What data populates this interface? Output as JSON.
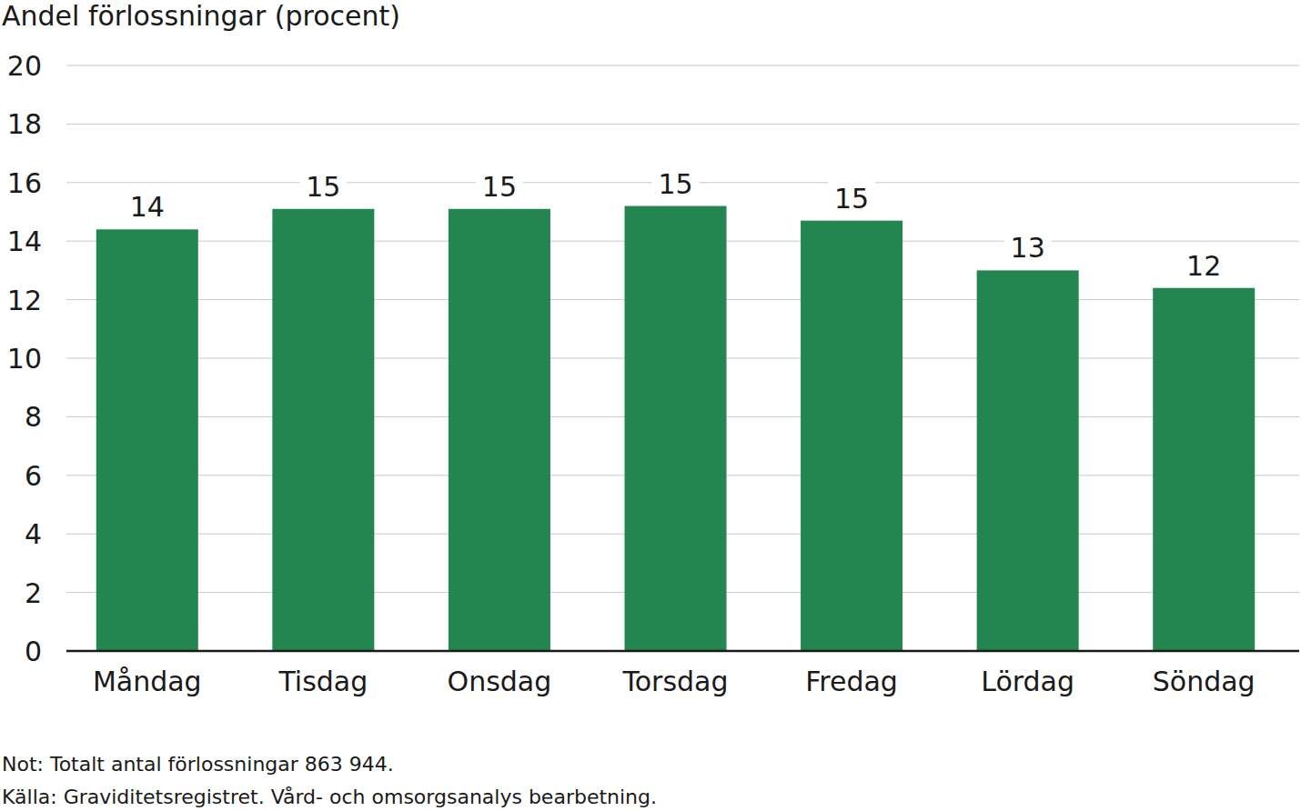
{
  "chart_data": {
    "type": "bar",
    "y_label": "Andel förlossningar (procent)",
    "categories": [
      "Måndag",
      "Tisdag",
      "Onsdag",
      "Torsdag",
      "Fredag",
      "Lördag",
      "Söndag"
    ],
    "values": [
      14.4,
      15.1,
      15.1,
      15.2,
      14.7,
      13.0,
      12.4
    ],
    "value_labels": [
      "14",
      "15",
      "15",
      "15",
      "15",
      "13",
      "12"
    ],
    "data_labels": true,
    "color": "#23854f",
    "ylim": [
      0,
      20
    ],
    "yticks": [
      0,
      2,
      4,
      6,
      8,
      10,
      12,
      14,
      16,
      18,
      20
    ],
    "grid": true,
    "notes": [
      "Not: Totalt antal förlossningar 863 944.",
      "Källa: Graviditetsregistret. Vård- och omsorgsanalys bearbetning."
    ]
  }
}
